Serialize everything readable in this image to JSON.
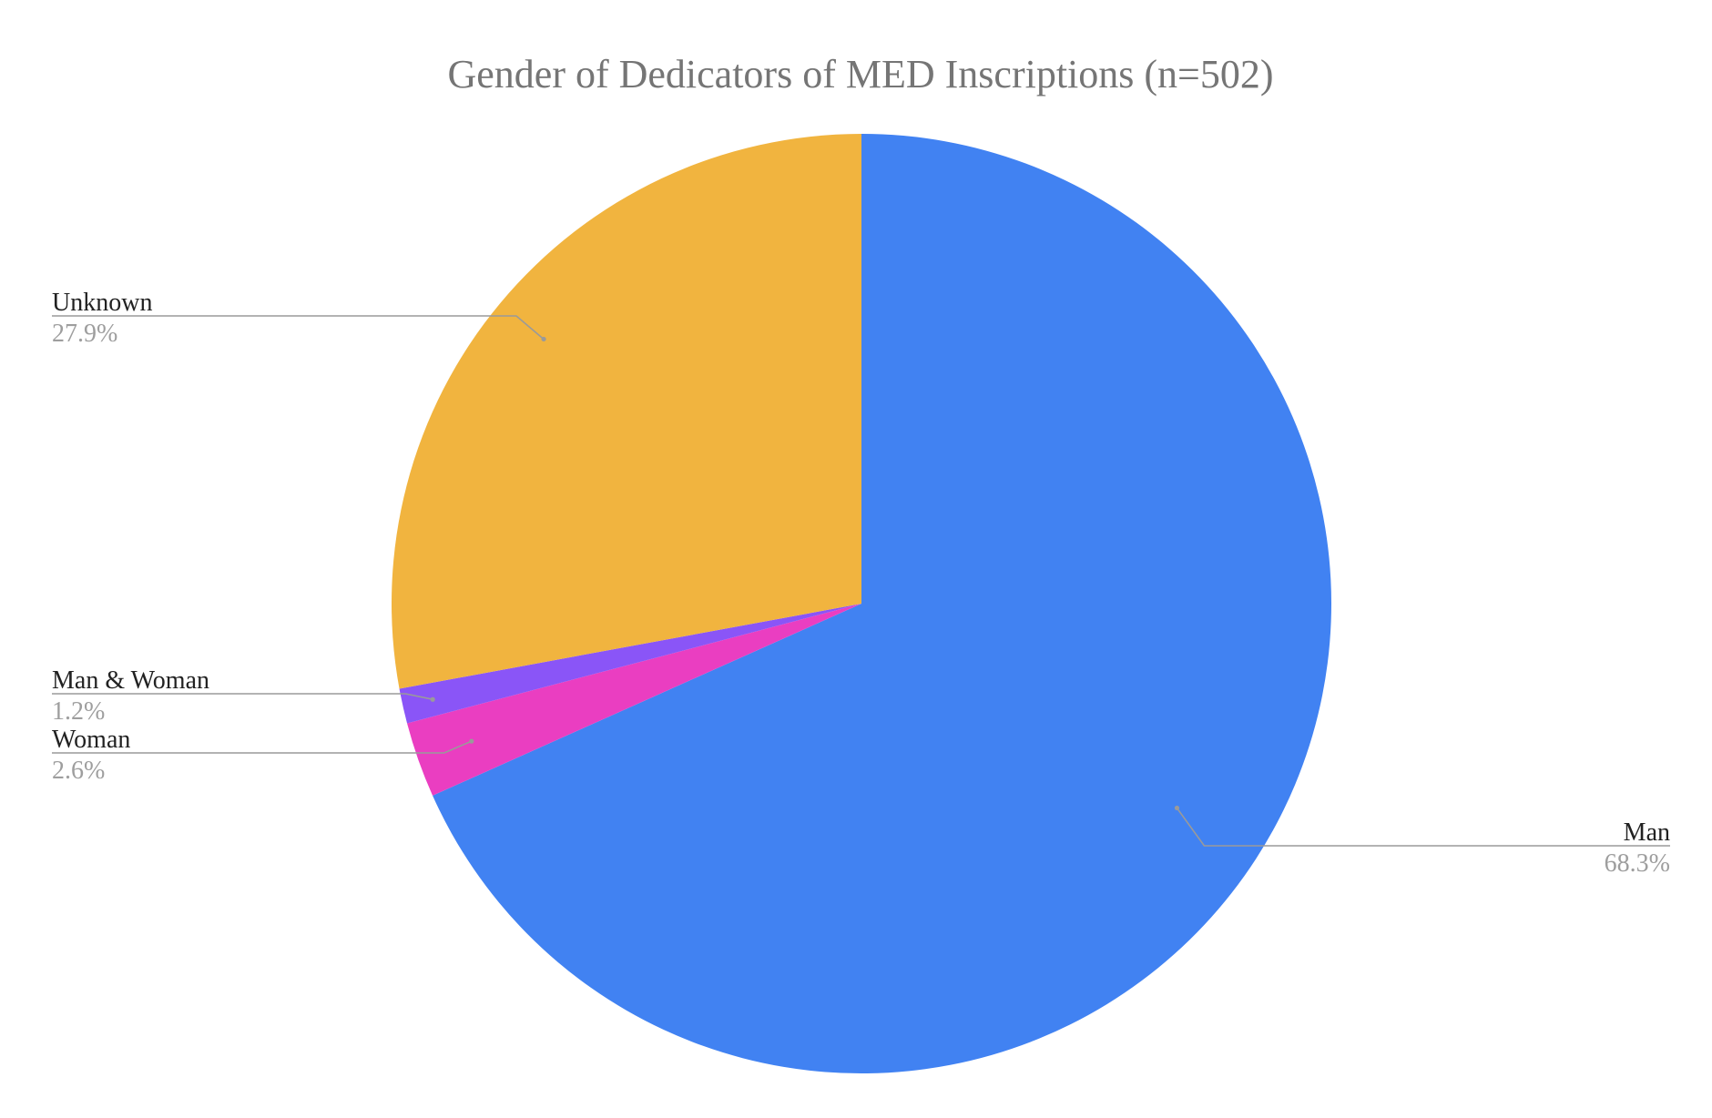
{
  "chart_data": {
    "type": "pie",
    "title": "Gender of Dedicators of MED Inscriptions (n=502)",
    "start_angle_deg": 0,
    "direction": "clockwise",
    "slices": [
      {
        "label": "Man",
        "value": 68.3,
        "percent_label": "68.3%",
        "color": "#4182f2"
      },
      {
        "label": "Woman",
        "value": 2.6,
        "percent_label": "2.6%",
        "color": "#ea3ec1"
      },
      {
        "label": "Man & Woman",
        "value": 1.2,
        "percent_label": "1.2%",
        "color": "#8a55f7"
      },
      {
        "label": "Unknown",
        "value": 27.9,
        "percent_label": "27.9%",
        "color": "#f1b43f"
      }
    ],
    "legend": "none"
  }
}
